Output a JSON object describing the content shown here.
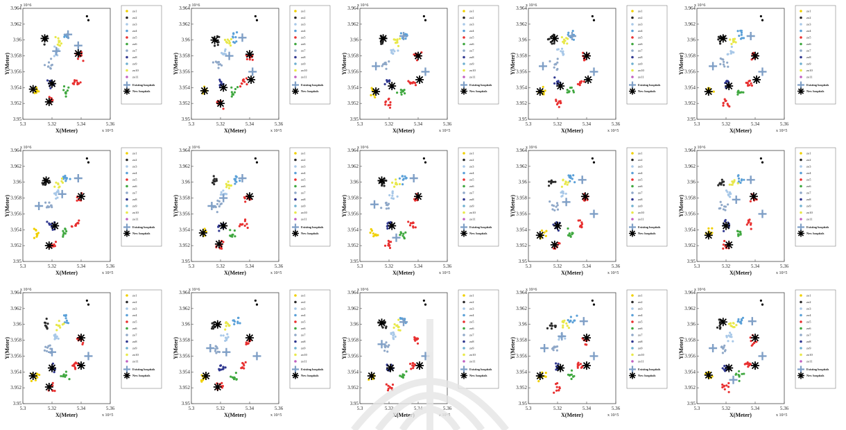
{
  "figure": {
    "colors": {
      "zones": [
        "#f0d000",
        "#2a2a2a",
        "#a8c8e8",
        "#5aa0d8",
        "#e83030",
        "#40a840",
        "#8fa8c8",
        "#303890",
        "#6fb0d0",
        "#e8e84a",
        "#c060c0"
      ],
      "existing_hospital": "#7f9fc6",
      "new_hospital": "#000000",
      "frame": "#444444"
    },
    "y_exponent": "x 10^6",
    "x_exponent": "x 10^5",
    "legend_special": [
      "Existing hospitals",
      "New hospitals"
    ]
  },
  "chart_data": [
    {
      "type": "scatter",
      "xlabel": "X(Meter)",
      "ylabel": "Y(Meter)",
      "xlim": [
        5.3,
        5.36
      ],
      "ylim": [
        3.95,
        3.964
      ],
      "xticks": [
        "5.3",
        "5.32",
        "5.34",
        "5.36"
      ],
      "yticks": [
        "3.95",
        "3.952",
        "3.954",
        "3.956",
        "3.958",
        "3.96",
        "3.962",
        "3.964"
      ],
      "legend": [
        "zo1",
        "zo2",
        "zo3",
        "zo4",
        "zo5",
        "zo6",
        "zo7",
        "zo8",
        "zo9",
        "zo10",
        "zo11"
      ],
      "existing_hospitals": [
        [
          5.323,
          3.9586
        ],
        [
          5.331,
          3.9607
        ],
        [
          5.338,
          3.9593
        ]
      ],
      "new_hospitals": [
        [
          5.307,
          3.9538
        ],
        [
          5.32,
          3.9545
        ],
        [
          5.318,
          3.9522
        ],
        [
          5.338,
          3.9583
        ],
        [
          5.315,
          3.9602
        ]
      ]
    },
    {
      "type": "scatter",
      "xlabel": "X(Meter)",
      "ylabel": "Y(Meter)",
      "xlim": [
        5.3,
        5.36
      ],
      "ylim": [
        3.95,
        3.964
      ],
      "xticks": [
        "5.3",
        "5.32",
        "5.34",
        "5.36"
      ],
      "yticks": [
        "3.95",
        "3.952",
        "3.954",
        "3.956",
        "3.958",
        "3.96",
        "3.962",
        "3.964"
      ],
      "legend": [
        "zo1",
        "zo2",
        "zo3",
        "zo4",
        "zo5",
        "zo6",
        "zo7",
        "zo8",
        "zo9",
        "zo10",
        "zo11"
      ],
      "existing_hospitals": [
        [
          5.326,
          3.958
        ],
        [
          5.335,
          3.9603
        ],
        [
          5.342,
          3.956
        ]
      ],
      "new_hospitals": [
        [
          5.309,
          3.9536
        ],
        [
          5.322,
          3.954
        ],
        [
          5.32,
          3.952
        ],
        [
          5.34,
          3.9582
        ],
        [
          5.316,
          3.96
        ],
        [
          5.341,
          3.955
        ]
      ]
    },
    {
      "type": "scatter",
      "xlabel": "X(Meter)",
      "ylabel": "Y(Meter)",
      "xlim": [
        5.3,
        5.36
      ],
      "ylim": [
        3.95,
        3.964
      ],
      "xticks": [
        "5.3",
        "5.32",
        "5.34",
        "5.36"
      ],
      "yticks": [
        "3.95",
        "3.952",
        "3.954",
        "3.956",
        "3.958",
        "3.96",
        "3.962",
        "3.964"
      ],
      "legend": [
        "zo1",
        "zo2",
        "zo3",
        "zo4",
        "zo5",
        "zo6",
        "zo7",
        "zo8",
        "zo9",
        "zo10",
        "zo11"
      ],
      "existing_hospitals": [
        [
          5.311,
          3.9567
        ],
        [
          5.33,
          3.9605
        ],
        [
          5.345,
          3.956
        ]
      ],
      "new_hospitals": [
        [
          5.311,
          3.9535
        ],
        [
          5.322,
          3.9542
        ],
        [
          5.34,
          3.958
        ],
        [
          5.316,
          3.9602
        ],
        [
          5.341,
          3.955
        ]
      ]
    },
    {
      "type": "scatter",
      "xlabel": "X(Meter)",
      "ylabel": "Y(Meter)",
      "xlim": [
        5.3,
        5.36
      ],
      "ylim": [
        3.95,
        3.964
      ],
      "xticks": [
        "5.3",
        "5.32",
        "5.34",
        "5.36"
      ],
      "yticks": [
        "3.95",
        "3.952",
        "3.954",
        "3.956",
        "3.958",
        "3.96",
        "3.962",
        "3.964"
      ],
      "legend": [
        "zo1",
        "zo2",
        "zo3",
        "zo4",
        "zo5",
        "zo6",
        "zo7",
        "zo8",
        "zo9",
        "zo10",
        "zo11"
      ],
      "existing_hospitals": [
        [
          5.31,
          3.9567
        ],
        [
          5.33,
          3.9605
        ],
        [
          5.345,
          3.956
        ]
      ],
      "new_hospitals": [
        [
          5.308,
          3.9535
        ],
        [
          5.322,
          3.9542
        ],
        [
          5.34,
          3.958
        ],
        [
          5.318,
          3.9602
        ],
        [
          5.341,
          3.955
        ]
      ]
    },
    {
      "type": "scatter",
      "xlabel": "X(Meter)",
      "ylabel": "Y(Meter)",
      "xlim": [
        5.3,
        5.36
      ],
      "ylim": [
        3.95,
        3.964
      ],
      "xticks": [
        "5.3",
        "5.32",
        "5.34",
        "5.36"
      ],
      "yticks": [
        "3.95",
        "3.952",
        "3.954",
        "3.956",
        "3.958",
        "3.96",
        "3.962",
        "3.964"
      ],
      "legend": [
        "zo1",
        "zo2",
        "zo3",
        "zo4",
        "zo5",
        "zo6",
        "zo7",
        "zo8",
        "zo9",
        "zo10",
        "zo11"
      ],
      "existing_hospitals": [
        [
          5.311,
          3.9567
        ],
        [
          5.337,
          3.9605
        ],
        [
          5.345,
          3.956
        ]
      ],
      "new_hospitals": [
        [
          5.308,
          3.9535
        ],
        [
          5.322,
          3.9542
        ],
        [
          5.34,
          3.958
        ],
        [
          5.318,
          3.9602
        ],
        [
          5.341,
          3.955
        ]
      ]
    },
    {
      "type": "scatter",
      "xlabel": "X(Meter)",
      "ylabel": "Y(Meter)",
      "xlim": [
        5.3,
        5.36
      ],
      "ylim": [
        3.95,
        3.964
      ],
      "xticks": [
        "5.3",
        "5.32",
        "5.34",
        "5.36"
      ],
      "yticks": [
        "3.95",
        "3.952",
        "3.954",
        "3.956",
        "3.958",
        "3.96",
        "3.962",
        "3.964"
      ],
      "legend": [
        "zo1",
        "zo2",
        "zo3",
        "zo4",
        "zo5",
        "zo6",
        "zo7",
        "zo8",
        "zo9",
        "zo10",
        "zo11"
      ],
      "existing_hospitals": [
        [
          5.311,
          3.957
        ],
        [
          5.338,
          3.9605
        ],
        [
          5.327,
          3.9585
        ]
      ],
      "new_hospitals": [
        [
          5.316,
          3.9602
        ],
        [
          5.322,
          3.9545
        ],
        [
          5.318,
          3.952
        ],
        [
          5.34,
          3.9582
        ]
      ]
    },
    {
      "type": "scatter",
      "xlabel": "X(Meter)",
      "ylabel": "Y(Meter)",
      "xlim": [
        5.3,
        5.36
      ],
      "ylim": [
        3.95,
        3.964
      ],
      "xticks": [
        "5.3",
        "5.32",
        "5.34",
        "5.36"
      ],
      "yticks": [
        "3.95",
        "3.952",
        "3.954",
        "3.956",
        "3.958",
        "3.96",
        "3.962",
        "3.964"
      ],
      "legend": [
        "zo1",
        "zo2",
        "zo3",
        "zo4",
        "zo5",
        "zo6",
        "zo7",
        "zo8",
        "zo9",
        "zo10",
        "zo11"
      ],
      "existing_hospitals": [
        [
          5.314,
          3.957
        ],
        [
          5.335,
          3.9605
        ],
        [
          5.322,
          3.958
        ]
      ],
      "new_hospitals": [
        [
          5.308,
          3.9536
        ],
        [
          5.322,
          3.9545
        ],
        [
          5.34,
          3.9582
        ],
        [
          5.319,
          3.9522
        ]
      ]
    },
    {
      "type": "scatter",
      "xlabel": "X(Meter)",
      "ylabel": "Y(Meter)",
      "xlim": [
        5.3,
        5.36
      ],
      "ylim": [
        3.95,
        3.964
      ],
      "xticks": [
        "5.3",
        "5.32",
        "5.34",
        "5.36"
      ],
      "yticks": [
        "3.95",
        "3.952",
        "3.954",
        "3.956",
        "3.958",
        "3.96",
        "3.962",
        "3.964"
      ],
      "legend": [
        "zo1",
        "zo2",
        "zo3",
        "zo4",
        "zo5",
        "zo6",
        "zo7",
        "zo8",
        "zo9",
        "zo10",
        "zo11"
      ],
      "existing_hospitals": [
        [
          5.31,
          3.9572
        ],
        [
          5.337,
          3.9605
        ],
        [
          5.325,
          3.953
        ]
      ],
      "new_hospitals": [
        [
          5.315,
          3.9602
        ],
        [
          5.322,
          3.9545
        ],
        [
          5.34,
          3.9582
        ]
      ]
    },
    {
      "type": "scatter",
      "xlabel": "X(Meter)",
      "ylabel": "Y(Meter)",
      "xlim": [
        5.3,
        5.36
      ],
      "ylim": [
        3.95,
        3.964
      ],
      "xticks": [
        "5.3",
        "5.32",
        "5.34",
        "5.36"
      ],
      "yticks": [
        "3.95",
        "3.952",
        "3.954",
        "3.956",
        "3.958",
        "3.96",
        "3.962",
        "3.964"
      ],
      "legend": [
        "zo1",
        "zo2",
        "zo3",
        "zo4",
        "zo5",
        "zo6",
        "zo7",
        "zo8",
        "zo9",
        "zo10",
        "zo11"
      ],
      "existing_hospitals": [
        [
          5.337,
          3.9603
        ],
        [
          5.345,
          3.956
        ],
        [
          5.326,
          3.9575
        ]
      ],
      "new_hospitals": [
        [
          5.308,
          3.9533
        ],
        [
          5.32,
          3.9545
        ],
        [
          5.318,
          3.9521
        ],
        [
          5.339,
          3.9582
        ]
      ]
    },
    {
      "type": "scatter",
      "xlabel": "X(Meter)",
      "ylabel": "Y(Meter)",
      "xlim": [
        5.3,
        5.36
      ],
      "ylim": [
        3.95,
        3.964
      ],
      "xticks": [
        "5.3",
        "5.32",
        "5.34",
        "5.36"
      ],
      "yticks": [
        "3.95",
        "3.952",
        "3.954",
        "3.956",
        "3.958",
        "3.96",
        "3.962",
        "3.964"
      ],
      "legend": [
        "zo1",
        "zo2",
        "zo3",
        "zo4",
        "zo5",
        "zo6",
        "zo7",
        "zo8",
        "zo9",
        "zo10",
        "zo11"
      ],
      "existing_hospitals": [
        [
          5.337,
          3.9603
        ],
        [
          5.345,
          3.956
        ],
        [
          5.327,
          3.9578
        ]
      ],
      "new_hospitals": [
        [
          5.308,
          3.9533
        ],
        [
          5.32,
          3.9545
        ],
        [
          5.322,
          3.9521
        ],
        [
          5.339,
          3.9582
        ]
      ]
    },
    {
      "type": "scatter",
      "xlabel": "X(Meter)",
      "ylabel": "Y(Meter)",
      "xlim": [
        5.3,
        5.36
      ],
      "ylim": [
        3.95,
        3.964
      ],
      "xticks": [
        "5.3",
        "5.32",
        "5.34",
        "5.36"
      ],
      "yticks": [
        "3.95",
        "3.952",
        "3.954",
        "3.956",
        "3.958",
        "3.96",
        "3.962",
        "3.964"
      ],
      "legend": [
        "zo1",
        "zo2",
        "zo3",
        "zo4",
        "zo5",
        "zo6",
        "zo7",
        "zo8",
        "zo9",
        "zo10",
        "zo11"
      ],
      "existing_hospitals": [
        [
          5.32,
          3.9565
        ],
        [
          5.345,
          3.956
        ]
      ],
      "new_hospitals": [
        [
          5.307,
          3.9535
        ],
        [
          5.32,
          3.9545
        ],
        [
          5.318,
          3.9521
        ],
        [
          5.34,
          3.9583
        ],
        [
          5.34,
          3.9548
        ]
      ]
    },
    {
      "type": "scatter",
      "xlabel": "X(Meter)",
      "ylabel": "Y(Meter)",
      "xlim": [
        5.3,
        5.36
      ],
      "ylim": [
        3.95,
        3.964
      ],
      "xticks": [
        "5.3",
        "5.32",
        "5.34",
        "5.36"
      ],
      "yticks": [
        "3.95",
        "3.952",
        "3.954",
        "3.956",
        "3.958",
        "3.96",
        "3.962",
        "3.964"
      ],
      "legend": [
        "zo1",
        "zo2",
        "zo3",
        "zo4",
        "zo5",
        "zo6",
        "zo7",
        "zo8",
        "zo9",
        "zo10",
        "zo11"
      ],
      "existing_hospitals": [
        [
          5.313,
          3.957
        ],
        [
          5.345,
          3.956
        ],
        [
          5.324,
          3.9565
        ]
      ],
      "new_hospitals": [
        [
          5.318,
          3.96
        ],
        [
          5.31,
          3.9535
        ],
        [
          5.318,
          3.9521
        ],
        [
          5.34,
          3.9583
        ]
      ]
    },
    {
      "type": "scatter",
      "xlabel": "X(Meter)",
      "ylabel": "Y(Meter)",
      "xlim": [
        5.3,
        5.36
      ],
      "ylim": [
        3.95,
        3.964
      ],
      "xticks": [
        "5.3",
        "5.32",
        "5.34",
        "5.36"
      ],
      "yticks": [
        "3.95",
        "3.952",
        "3.954",
        "3.956",
        "3.958",
        "3.96",
        "3.962",
        "3.964"
      ],
      "legend": [
        "zo1",
        "zo2",
        "zo3",
        "zo4",
        "zo5",
        "zo6",
        "zo7",
        "zo8",
        "zo9",
        "zo10",
        "zo11"
      ],
      "existing_hospitals": [
        [
          5.33,
          3.9603
        ],
        [
          5.345,
          3.956
        ],
        [
          5.315,
          3.9575
        ]
      ],
      "new_hospitals": [
        [
          5.315,
          3.9602
        ],
        [
          5.308,
          3.9535
        ],
        [
          5.321,
          3.9545
        ],
        [
          5.341,
          3.9548
        ]
      ]
    },
    {
      "type": "scatter",
      "xlabel": "X(Meter)",
      "ylabel": "Y(Meter)",
      "xlim": [
        5.3,
        5.36
      ],
      "ylim": [
        3.95,
        3.964
      ],
      "xticks": [
        "5.3",
        "5.32",
        "5.34",
        "5.36"
      ],
      "yticks": [
        "3.95",
        "3.952",
        "3.954",
        "3.956",
        "3.958",
        "3.96",
        "3.962",
        "3.964"
      ],
      "legend": [
        "zo1",
        "zo2",
        "zo3",
        "zo4",
        "zo5",
        "zo6",
        "zo7",
        "zo8",
        "zo9",
        "zo10",
        "zo11"
      ],
      "existing_hospitals": [
        [
          5.311,
          3.957
        ],
        [
          5.338,
          3.9604
        ],
        [
          5.345,
          3.956
        ],
        [
          5.323,
          3.9585
        ]
      ],
      "new_hospitals": [
        [
          5.308,
          3.9535
        ],
        [
          5.322,
          3.9545
        ],
        [
          5.34,
          3.9583
        ],
        [
          5.34,
          3.9548
        ]
      ]
    },
    {
      "type": "scatter",
      "xlabel": "X(Meter)",
      "ylabel": "Y(Meter)",
      "xlim": [
        5.3,
        5.36
      ],
      "ylim": [
        3.95,
        3.964
      ],
      "xticks": [
        "5.3",
        "5.32",
        "5.34",
        "5.36"
      ],
      "yticks": [
        "3.95",
        "3.952",
        "3.954",
        "3.956",
        "3.958",
        "3.96",
        "3.962",
        "3.964"
      ],
      "legend": [
        "zo1",
        "zo2",
        "zo3",
        "zo4",
        "zo5",
        "zo6",
        "zo7",
        "zo8",
        "zo9",
        "zo10",
        "zo11"
      ],
      "existing_hospitals": [
        [
          5.311,
          3.957
        ],
        [
          5.338,
          3.9604
        ],
        [
          5.345,
          3.956
        ],
        [
          5.325,
          3.953
        ]
      ],
      "new_hospitals": [
        [
          5.308,
          3.9536
        ],
        [
          5.322,
          3.9545
        ],
        [
          5.318,
          3.9603
        ],
        [
          5.34,
          3.9583
        ],
        [
          5.34,
          3.9548
        ]
      ]
    }
  ]
}
